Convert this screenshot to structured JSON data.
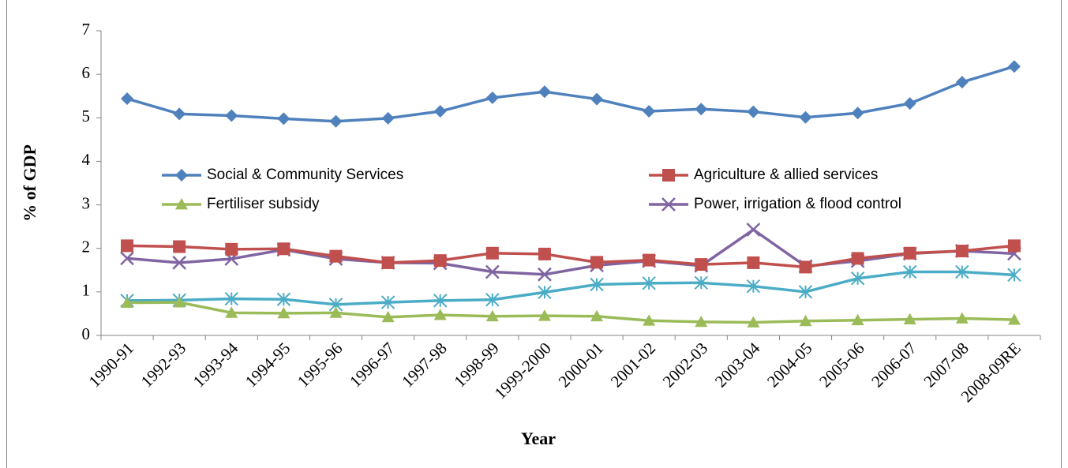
{
  "chart_data": {
    "type": "line",
    "x_label": "Year",
    "y_label": "% of GDP",
    "categories": [
      "1990-91",
      "1992-93",
      "1993-94",
      "1994-95",
      "1995-96",
      "1996-97",
      "1997-98",
      "1998-99",
      "1999-2000",
      "2000-01",
      "2001-02",
      "2002-03",
      "2003-04",
      "2004-05",
      "2005-06",
      "2006-07",
      "2007-08",
      "2008-09RE"
    ],
    "series": [
      {
        "name": "Social & Community Services",
        "color": "#4f81bd",
        "marker": "diamond",
        "values": [
          5.44,
          5.09,
          5.05,
          4.98,
          4.92,
          4.99,
          5.15,
          5.46,
          5.6,
          5.43,
          5.15,
          5.2,
          5.14,
          5.01,
          5.11,
          5.33,
          5.82,
          6.18
        ]
      },
      {
        "name": "Agriculture & allied services",
        "color": "#c0504d",
        "marker": "square",
        "values": [
          2.06,
          2.04,
          1.98,
          1.99,
          1.82,
          1.67,
          1.72,
          1.89,
          1.87,
          1.68,
          1.73,
          1.63,
          1.67,
          1.57,
          1.77,
          1.89,
          1.94,
          2.06
        ]
      },
      {
        "name": "Fertiliser subsidy",
        "color": "#9bbb59",
        "marker": "triangle",
        "values": [
          0.75,
          0.76,
          0.52,
          0.51,
          0.52,
          0.42,
          0.47,
          0.44,
          0.45,
          0.44,
          0.34,
          0.31,
          0.3,
          0.33,
          0.35,
          0.37,
          0.39,
          0.36
        ]
      },
      {
        "name": "Power, irrigation & flood control",
        "color": "#8064a2",
        "marker": "x",
        "values": [
          1.77,
          1.67,
          1.76,
          1.97,
          1.76,
          1.67,
          1.66,
          1.46,
          1.4,
          1.61,
          1.71,
          1.6,
          2.43,
          1.59,
          1.71,
          1.88,
          1.94,
          1.88
        ]
      },
      {
        "color": "#4bacc6",
        "marker": "star",
        "values": [
          0.8,
          0.81,
          0.84,
          0.83,
          0.71,
          0.76,
          0.8,
          0.82,
          0.99,
          1.17,
          1.2,
          1.21,
          1.13,
          1.0,
          1.31,
          1.46,
          1.46,
          1.39
        ]
      }
    ],
    "ylim": [
      0,
      7
    ],
    "yticks": [
      0,
      1,
      2,
      3,
      4,
      5,
      6,
      7
    ],
    "grid": false
  }
}
